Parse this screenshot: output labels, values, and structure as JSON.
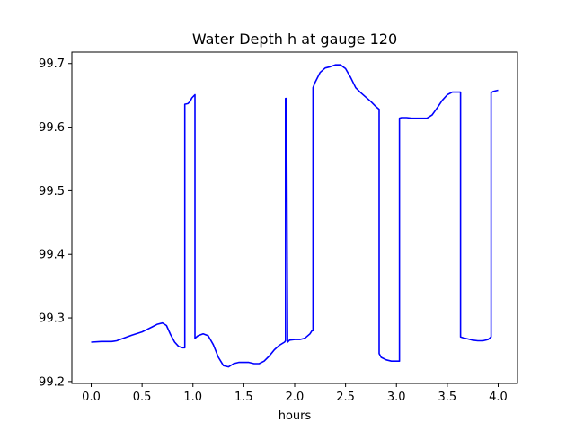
{
  "chart_data": {
    "type": "line",
    "title": "Water Depth h at gauge 120",
    "xlabel": "hours",
    "ylabel": "",
    "xlim": [
      -0.19,
      4.19
    ],
    "ylim": [
      99.197,
      99.718
    ],
    "xticks": [
      0.0,
      0.5,
      1.0,
      1.5,
      2.0,
      2.5,
      3.0,
      3.5,
      4.0
    ],
    "xtick_labels": [
      "0.0",
      "0.5",
      "1.0",
      "1.5",
      "2.0",
      "2.5",
      "3.0",
      "3.5",
      "4.0"
    ],
    "yticks": [
      99.2,
      99.3,
      99.4,
      99.5,
      99.6,
      99.7
    ],
    "ytick_labels": [
      "99.2",
      "99.3",
      "99.4",
      "99.5",
      "99.6",
      "99.7"
    ],
    "grid": false,
    "series": [
      {
        "name": "",
        "color": "#0000ff",
        "x": [
          0.0,
          0.1,
          0.2,
          0.25,
          0.3,
          0.4,
          0.5,
          0.55,
          0.6,
          0.65,
          0.7,
          0.74,
          0.78,
          0.82,
          0.86,
          0.9,
          0.92,
          0.92,
          0.95,
          0.97,
          0.99,
          1.02,
          1.02,
          1.05,
          1.1,
          1.15,
          1.2,
          1.25,
          1.3,
          1.35,
          1.4,
          1.45,
          1.5,
          1.55,
          1.6,
          1.65,
          1.7,
          1.75,
          1.8,
          1.85,
          1.9,
          1.91,
          1.91,
          1.92,
          1.93,
          1.93,
          1.95,
          2.0,
          2.05,
          2.1,
          2.15,
          2.17,
          2.18,
          2.18,
          2.2,
          2.25,
          2.3,
          2.35,
          2.4,
          2.45,
          2.5,
          2.55,
          2.6,
          2.65,
          2.7,
          2.75,
          2.8,
          2.83,
          2.83,
          2.85,
          2.9,
          2.95,
          3.0,
          3.03,
          3.03,
          3.05,
          3.1,
          3.15,
          3.2,
          3.25,
          3.3,
          3.35,
          3.4,
          3.45,
          3.5,
          3.55,
          3.6,
          3.63,
          3.63,
          3.65,
          3.7,
          3.75,
          3.8,
          3.85,
          3.9,
          3.93,
          3.93,
          3.95,
          4.0
        ],
        "y": [
          99.262,
          99.263,
          99.263,
          99.264,
          99.267,
          99.273,
          99.278,
          99.282,
          99.286,
          99.29,
          99.292,
          99.288,
          99.274,
          99.262,
          99.255,
          99.253,
          99.253,
          99.636,
          99.637,
          99.64,
          99.646,
          99.651,
          99.268,
          99.272,
          99.275,
          99.272,
          99.258,
          99.238,
          99.225,
          99.223,
          99.228,
          99.23,
          99.23,
          99.23,
          99.228,
          99.228,
          99.232,
          99.24,
          99.25,
          99.257,
          99.262,
          99.264,
          99.645,
          99.645,
          99.266,
          99.262,
          99.265,
          99.266,
          99.266,
          99.268,
          99.275,
          99.28,
          99.28,
          99.662,
          99.67,
          99.686,
          99.693,
          99.695,
          99.698,
          99.698,
          99.692,
          99.678,
          99.662,
          99.654,
          99.647,
          99.64,
          99.632,
          99.628,
          99.244,
          99.238,
          99.234,
          99.232,
          99.232,
          99.232,
          99.614,
          99.615,
          99.615,
          99.614,
          99.614,
          99.614,
          99.614,
          99.619,
          99.63,
          99.642,
          99.651,
          99.655,
          99.655,
          99.655,
          99.27,
          99.269,
          99.267,
          99.265,
          99.264,
          99.264,
          99.266,
          99.27,
          99.654,
          99.656,
          99.658
        ]
      }
    ]
  }
}
